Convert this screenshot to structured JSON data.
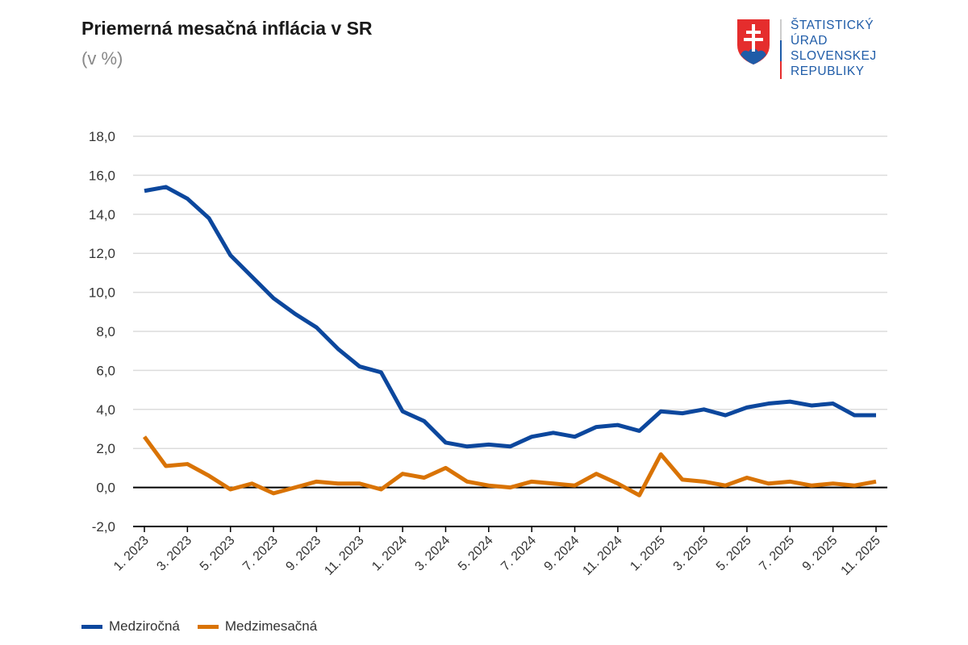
{
  "header": {
    "title": "Priemerná mesačná inflácia v SR",
    "subtitle": "(v %)"
  },
  "logo": {
    "lines": [
      "ŠTATISTICKÝ",
      "ÚRAD",
      "SLOVENSKEJ",
      "REPUBLIKY"
    ],
    "colors": {
      "blue": "#1f5ca8",
      "red": "#e52d2d"
    }
  },
  "chart_data": {
    "type": "line",
    "title": "Priemerná mesačná inflácia v SR",
    "subtitle": "(v %)",
    "ylim": [
      -2,
      18
    ],
    "yticks": [
      "-2,0",
      "0,0",
      "2,0",
      "4,0",
      "6,0",
      "8,0",
      "10,0",
      "12,0",
      "14,0",
      "16,0",
      "18,0"
    ],
    "grid": true,
    "legend": "bottom-left",
    "x": [
      "1. 2023",
      "2. 2023",
      "3. 2023",
      "4. 2023",
      "5. 2023",
      "6. 2023",
      "7. 2023",
      "8. 2023",
      "9. 2023",
      "10. 2023",
      "11. 2023",
      "12. 2023",
      "1. 2024",
      "2. 2024",
      "3. 2024",
      "4. 2024",
      "5. 2024",
      "6. 2024",
      "7. 2024",
      "8. 2024",
      "9. 2024",
      "10. 2024",
      "11. 2024",
      "12. 2024",
      "1. 2025",
      "2. 2025",
      "3. 2025",
      "4. 2025",
      "5. 2025",
      "6. 2025",
      "7. 2025",
      "8. 2025",
      "9. 2025",
      "10. 2025",
      "11. 2025"
    ],
    "xtick_labels": [
      "1. 2023",
      "3. 2023",
      "5. 2023",
      "7. 2023",
      "9. 2023",
      "11. 2023",
      "1. 2024",
      "3. 2024",
      "5. 2024",
      "7. 2024",
      "9. 2024",
      "11. 2024",
      "1. 2025",
      "3. 2025",
      "5. 2025",
      "7. 2025",
      "9. 2025",
      "11. 2025"
    ],
    "series": [
      {
        "name": "Medziročná",
        "color": "#0c479d",
        "values": [
          15.2,
          15.4,
          14.8,
          13.8,
          11.9,
          10.8,
          9.7,
          8.9,
          8.2,
          7.1,
          6.2,
          5.9,
          3.9,
          3.4,
          2.3,
          2.1,
          2.2,
          2.1,
          2.6,
          2.8,
          2.6,
          3.1,
          3.2,
          2.9,
          3.9,
          3.8,
          4.0,
          3.7,
          4.1,
          4.3,
          4.4,
          4.2,
          4.3,
          3.7,
          3.7
        ]
      },
      {
        "name": "Medzimesačná",
        "color": "#d97304",
        "values": [
          2.6,
          1.1,
          1.2,
          0.6,
          -0.1,
          0.2,
          -0.3,
          0.0,
          0.3,
          0.2,
          0.2,
          -0.1,
          0.7,
          0.5,
          1.0,
          0.3,
          0.1,
          0.0,
          0.3,
          0.2,
          0.1,
          0.7,
          0.2,
          -0.4,
          1.7,
          0.4,
          0.3,
          0.1,
          0.5,
          0.2,
          0.3,
          0.1,
          0.2,
          0.1,
          0.3
        ]
      }
    ]
  }
}
